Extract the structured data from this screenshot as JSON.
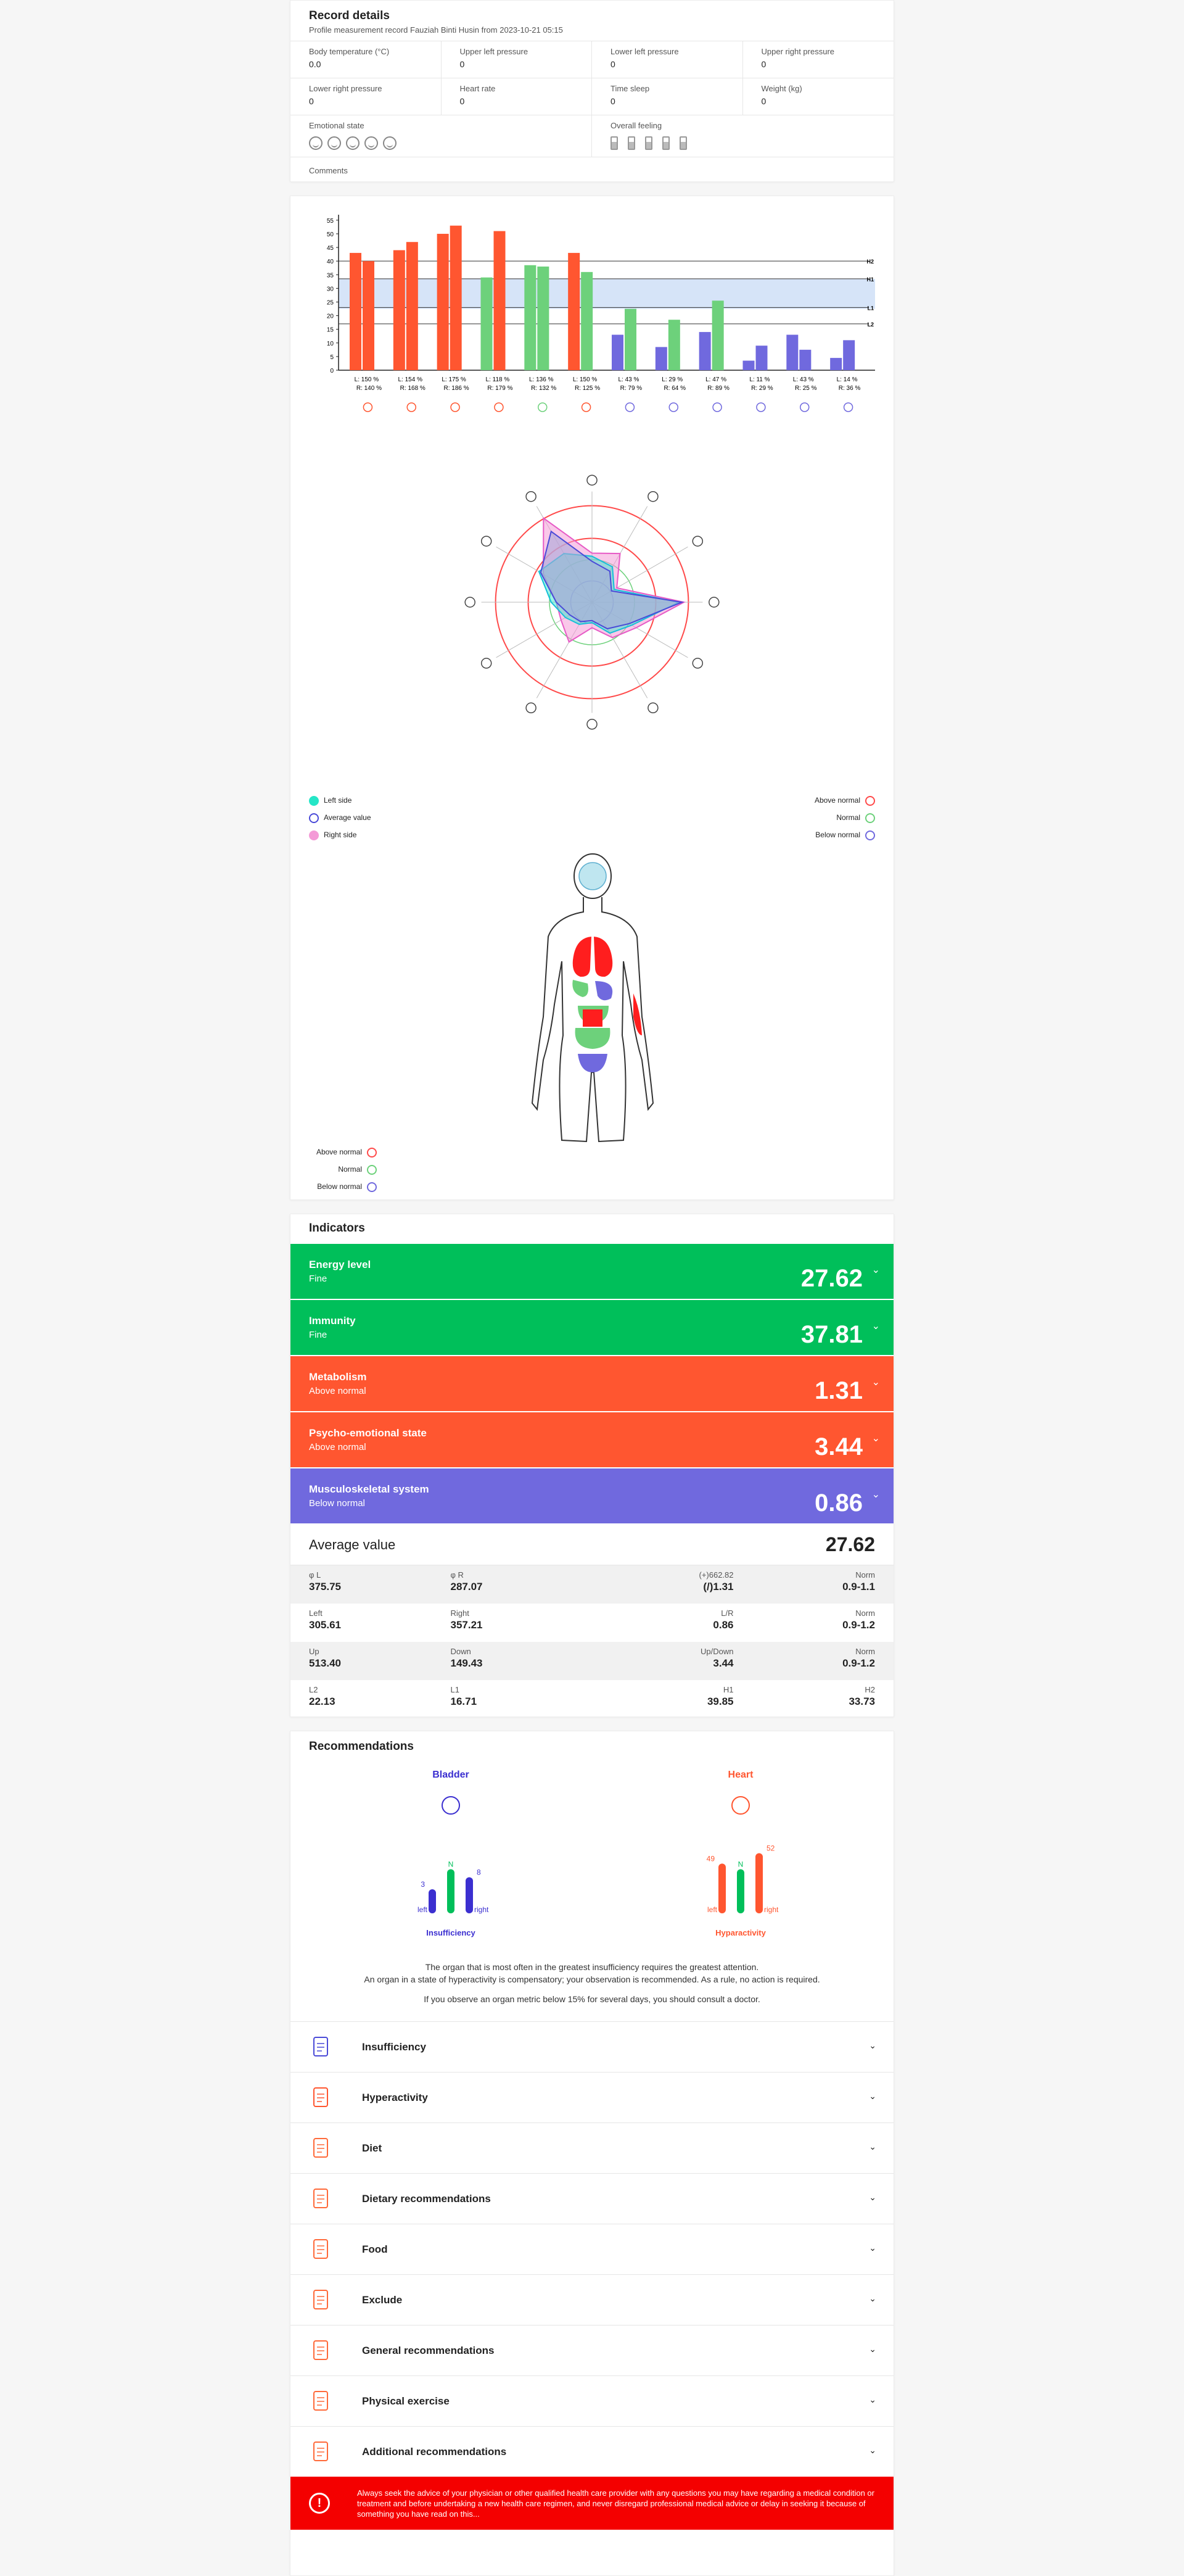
{
  "record": {
    "title": "Record details",
    "subtitle": "Profile measurement record Fauziah Binti Husin from 2023-10-21 05:15",
    "fields": [
      {
        "label": "Body temperature (°C)",
        "value": "0.0"
      },
      {
        "label": "Upper left pressure",
        "value": "0"
      },
      {
        "label": "Lower left pressure",
        "value": "0"
      },
      {
        "label": "Upper right pressure",
        "value": "0"
      },
      {
        "label": "Lower right pressure",
        "value": "0"
      },
      {
        "label": "Heart rate",
        "value": "0"
      },
      {
        "label": "Time sleep",
        "value": "0"
      },
      {
        "label": "Weight (kg)",
        "value": "0"
      }
    ],
    "emotional_label": "Emotional state",
    "feeling_label": "Overall feeling",
    "comments_label": "Comments"
  },
  "chart_data": {
    "type": "bar",
    "y_ticks": [
      0,
      5,
      10,
      15,
      20,
      25,
      30,
      35,
      40,
      45,
      50,
      55
    ],
    "ylim": [
      0,
      57
    ],
    "reference_lines": [
      {
        "label": "H2",
        "value": 40
      },
      {
        "label": "H1",
        "value": 33.5
      },
      {
        "label": "L1",
        "value": 23
      },
      {
        "label": "L2",
        "value": 17
      }
    ],
    "normal_band": [
      22.5,
      33.5
    ],
    "categories": [
      {
        "left_label": "L: 150 %",
        "right_label": "R: 140 %",
        "left": 43,
        "right": 40,
        "color": "#ff5630",
        "icon": "lungs-icon"
      },
      {
        "left_label": "L: 154 %",
        "right_label": "R: 168 %",
        "left": 44,
        "right": 47,
        "color": "#ff5630",
        "icon": "heart-icon"
      },
      {
        "left_label": "L: 175 %",
        "right_label": "R: 186 %",
        "left": 50,
        "right": 53,
        "color": "#ff5630",
        "icon": "pancreas-icon"
      },
      {
        "left_label": "L: 118 %",
        "right_label": "R: 179 %",
        "left": 34,
        "right": 51,
        "color": "#ff5630",
        "left_color": "#6dd17b",
        "icon": "stomach-icon"
      },
      {
        "left_label": "L: 136 %",
        "right_label": "R: 132 %",
        "left": 38.5,
        "right": 38,
        "color": "#6dd17b",
        "icon": "kidney-icon"
      },
      {
        "left_label": "L: 150 %",
        "right_label": "R: 125 %",
        "left": 43,
        "right": 36,
        "color": "#ff5630",
        "right_color": "#6dd17b",
        "icon": "gallbladder-icon"
      },
      {
        "left_label": "L: 43 %",
        "right_label": "R: 79 %",
        "left": 13,
        "right": 22.5,
        "color": "#7069de",
        "right_color": "#6dd17b",
        "icon": "colon-icon"
      },
      {
        "left_label": "L: 29 %",
        "right_label": "R: 64 %",
        "left": 8.5,
        "right": 18.5,
        "color": "#7069de",
        "right_color": "#6dd17b",
        "icon": "intestine-icon"
      },
      {
        "left_label": "L: 47 %",
        "right_label": "R: 89 %",
        "left": 14,
        "right": 25.5,
        "color": "#7069de",
        "right_color": "#6dd17b",
        "icon": "spleen-icon"
      },
      {
        "left_label": "L: 11 %",
        "right_label": "R: 29 %",
        "left": 3.5,
        "right": 9,
        "color": "#7069de",
        "icon": "bladder-icon"
      },
      {
        "left_label": "L: 43 %",
        "right_label": "R: 25 %",
        "left": 13,
        "right": 7.5,
        "color": "#7069de",
        "icon": "joint-icon"
      },
      {
        "left_label": "L: 14 %",
        "right_label": "R: 36 %",
        "left": 4.5,
        "right": 11,
        "color": "#7069de",
        "icon": "liver-icon"
      }
    ],
    "radar": {
      "left": [
        0.45,
        0.4,
        0.25,
        0.85,
        0.45,
        0.35,
        0.2,
        0.25,
        0.3,
        0.4,
        0.6,
        0.55
      ],
      "right": [
        0.48,
        0.55,
        0.28,
        0.9,
        0.5,
        0.4,
        0.25,
        0.45,
        0.35,
        0.35,
        0.55,
        0.95
      ],
      "average": [
        0.4,
        0.35,
        0.22,
        0.88,
        0.42,
        0.3,
        0.18,
        0.22,
        0.25,
        0.35,
        0.58,
        0.8
      ]
    }
  },
  "radar_legend": {
    "left_side": "Left side",
    "average": "Average value",
    "right_side": "Right side",
    "above": "Above normal",
    "normal": "Normal",
    "below": "Below normal"
  },
  "body_legend": {
    "above": "Above normal",
    "normal": "Normal",
    "below": "Below normal"
  },
  "indicators": {
    "title": "Indicators",
    "rows": [
      {
        "title": "Energy level",
        "status": "Fine",
        "value": "27.62",
        "color": "#00bf5a"
      },
      {
        "title": "Immunity",
        "status": "Fine",
        "value": "37.81",
        "color": "#00bf5a"
      },
      {
        "title": "Metabolism",
        "status": "Above normal",
        "value": "1.31",
        "color": "#ff5630"
      },
      {
        "title": "Psycho-emotional state",
        "status": "Above normal",
        "value": "3.44",
        "color": "#ff5630"
      },
      {
        "title": "Musculoskeletal system",
        "status": "Below normal",
        "value": "0.86",
        "color": "#7069de"
      }
    ],
    "average_label": "Average value",
    "average_value": "27.62",
    "metrics": [
      [
        {
          "k": "φ L",
          "v": "375.75"
        },
        {
          "k": "φ R",
          "v": "287.07"
        },
        {
          "k": "(+)662.82",
          "v": "(/)1.31"
        },
        {
          "k": "Norm",
          "v": "0.9-1.1"
        }
      ],
      [
        {
          "k": "Left",
          "v": "305.61"
        },
        {
          "k": "Right",
          "v": "357.21"
        },
        {
          "k": "L/R",
          "v": "0.86"
        },
        {
          "k": "Norm",
          "v": "0.9-1.2"
        }
      ],
      [
        {
          "k": "Up",
          "v": "513.40"
        },
        {
          "k": "Down",
          "v": "149.43"
        },
        {
          "k": "Up/Down",
          "v": "3.44"
        },
        {
          "k": "Norm",
          "v": "0.9-1.2"
        }
      ],
      [
        {
          "k": "L2",
          "v": "22.13"
        },
        {
          "k": "L1",
          "v": "16.71"
        },
        {
          "k": "H1",
          "v": "39.85"
        },
        {
          "k": "H2",
          "v": "33.73"
        }
      ]
    ]
  },
  "recommendations": {
    "title": "Recommendations",
    "bladder": {
      "name": "Bladder",
      "left": "3",
      "norm": "N",
      "right": "8",
      "left_label": "left",
      "right_label": "right",
      "state": "Insufficiency",
      "left_level": 0.3,
      "norm_level": 0.55,
      "right_level": 0.45,
      "color": "#3b2fd0"
    },
    "heart": {
      "name": "Heart",
      "left": "49",
      "norm": "N",
      "right": "52",
      "left_label": "left",
      "right_label": "right",
      "state": "Hyparactivity",
      "left_level": 0.62,
      "norm_level": 0.55,
      "right_level": 0.75,
      "color": "#ff5630"
    },
    "message1": "The organ that is most often in the greatest insufficiency requires the greatest attention.",
    "message2": "An organ in a state of hyperactivity is compensatory; your observation is recommended. As a rule, no action is required.",
    "message3": "If you observe an organ metric below 15% for several days, you should consult a doctor.",
    "items": [
      {
        "label": "Insufficiency",
        "icon": "bladder-icon"
      },
      {
        "label": "Hyperactivity",
        "icon": "heart-icon"
      },
      {
        "label": "Diet",
        "icon": "cutlery-icon"
      },
      {
        "label": "Dietary recommendations",
        "icon": "document-icon"
      },
      {
        "label": "Food",
        "icon": "food-icon"
      },
      {
        "label": "Exclude",
        "icon": "exclude-icon"
      },
      {
        "label": "General recommendations",
        "icon": "clipboard-icon"
      },
      {
        "label": "Physical exercise",
        "icon": "exercise-icon"
      },
      {
        "label": "Additional recommendations",
        "icon": "additional-icon"
      }
    ],
    "disclaimer": "Always seek the advice of your physician or other qualified health care provider with any questions you may have regarding a medical condition or treatment and before undertaking a new health care regimen, and never disregard professional medical advice or delay in seeking it because of something you have read on this..."
  }
}
